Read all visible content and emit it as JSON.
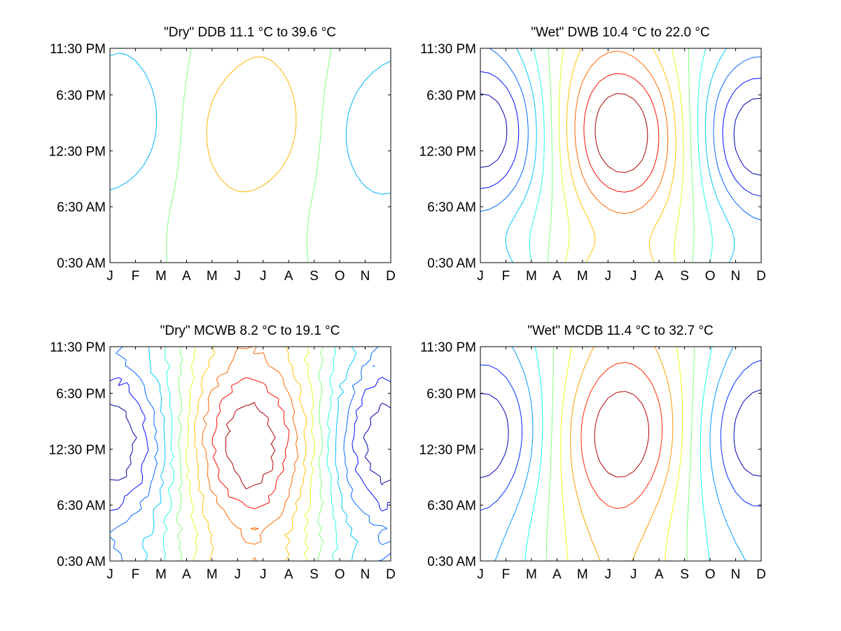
{
  "chart_data": [
    {
      "type": "contour",
      "title": "\"Dry\" DDB  11.1 °C to  39.6 °C",
      "x_tick_labels": [
        "J",
        "F",
        "M",
        "A",
        "M",
        "J",
        "J",
        "A",
        "S",
        "O",
        "N",
        "D"
      ],
      "y_tick_labels": [
        "11:30 PM",
        "6:30 PM",
        "12:30 PM",
        "6:30 AM",
        "0:30 AM"
      ],
      "xlim": [
        1,
        12
      ],
      "ylim_hours": [
        0.5,
        23.5
      ],
      "color_scale": "jet",
      "value_range": [
        11.1,
        39.6
      ],
      "level_count": 5,
      "grid": false,
      "legend": "none"
    },
    {
      "type": "contour",
      "title": "\"Wet\" DWB  10.4 °C to  22.0 °C",
      "x_tick_labels": [
        "J",
        "F",
        "M",
        "A",
        "M",
        "J",
        "J",
        "A",
        "S",
        "O",
        "N",
        "D"
      ],
      "y_tick_labels": [
        "11:30 PM",
        "6:30 PM",
        "12:30 PM",
        "6:30 AM",
        "0:30 AM"
      ],
      "xlim": [
        1,
        12
      ],
      "ylim_hours": [
        0.5,
        23.5
      ],
      "color_scale": "jet",
      "value_range": [
        10.4,
        22.0
      ],
      "level_count": 11,
      "grid": false,
      "legend": "none"
    },
    {
      "type": "contour",
      "title": "\"Dry\" MCWB   8.2 °C to  19.1 °C",
      "x_tick_labels": [
        "J",
        "F",
        "M",
        "A",
        "M",
        "J",
        "J",
        "A",
        "S",
        "O",
        "N",
        "D"
      ],
      "y_tick_labels": [
        "11:30 PM",
        "6:30 PM",
        "12:30 PM",
        "6:30 AM",
        "0:30 AM"
      ],
      "xlim": [
        1,
        12
      ],
      "ylim_hours": [
        0.5,
        23.5
      ],
      "color_scale": "jet",
      "value_range": [
        8.2,
        19.1
      ],
      "level_count": 11,
      "grid": false,
      "legend": "none"
    },
    {
      "type": "contour",
      "title": "\"Wet\" MCDB  11.4 °C to  32.7 °C",
      "x_tick_labels": [
        "J",
        "F",
        "M",
        "A",
        "M",
        "J",
        "J",
        "A",
        "S",
        "O",
        "N",
        "D"
      ],
      "y_tick_labels": [
        "11:30 PM",
        "6:30 PM",
        "12:30 PM",
        "6:30 AM",
        "0:30 AM"
      ],
      "xlim": [
        1,
        12
      ],
      "ylim_hours": [
        0.5,
        23.5
      ],
      "color_scale": "jet",
      "value_range": [
        11.4,
        32.7
      ],
      "level_count": 9,
      "grid": false,
      "legend": "none"
    }
  ]
}
